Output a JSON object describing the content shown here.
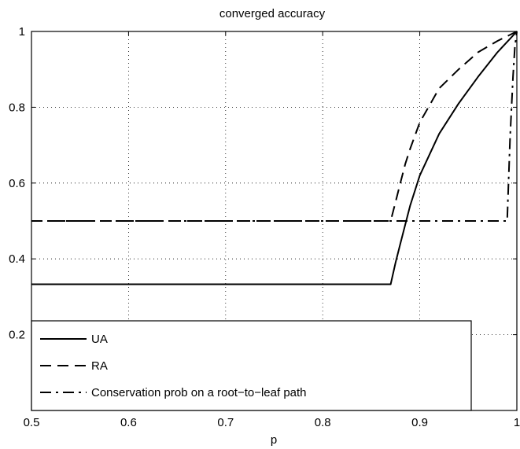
{
  "chart_data": {
    "type": "line",
    "title": "converged accuracy",
    "xlabel": "p",
    "ylabel": "",
    "xlim": [
      0.5,
      1
    ],
    "ylim": [
      0,
      1
    ],
    "grid": true,
    "legend_position": "bottom-left",
    "x_ticks": [
      "0.5",
      "0.6",
      "0.7",
      "0.8",
      "0.9",
      "1"
    ],
    "y_ticks": [
      "0.2",
      "0.4",
      "0.6",
      "0.8",
      "1"
    ],
    "series": [
      {
        "name": "UA",
        "style": "solid",
        "x": [
          0.5,
          0.87,
          0.875,
          0.88,
          0.885,
          0.89,
          0.9,
          0.92,
          0.94,
          0.96,
          0.98,
          1.0
        ],
        "y": [
          0.333,
          0.333,
          0.39,
          0.44,
          0.49,
          0.54,
          0.62,
          0.73,
          0.81,
          0.88,
          0.945,
          1.0
        ]
      },
      {
        "name": "RA",
        "style": "dashed",
        "x": [
          0.5,
          0.87,
          0.875,
          0.88,
          0.885,
          0.89,
          0.9,
          0.92,
          0.94,
          0.96,
          0.98,
          1.0
        ],
        "y": [
          0.5,
          0.5,
          0.55,
          0.6,
          0.65,
          0.69,
          0.76,
          0.85,
          0.9,
          0.945,
          0.975,
          1.0
        ]
      },
      {
        "name": "Conservation prob on a root−to−leaf path",
        "style": "dashdot",
        "x": [
          0.5,
          0.99,
          0.993,
          0.996,
          0.998,
          1.0
        ],
        "y": [
          0.5,
          0.5,
          0.72,
          0.88,
          0.96,
          1.0
        ]
      }
    ]
  }
}
